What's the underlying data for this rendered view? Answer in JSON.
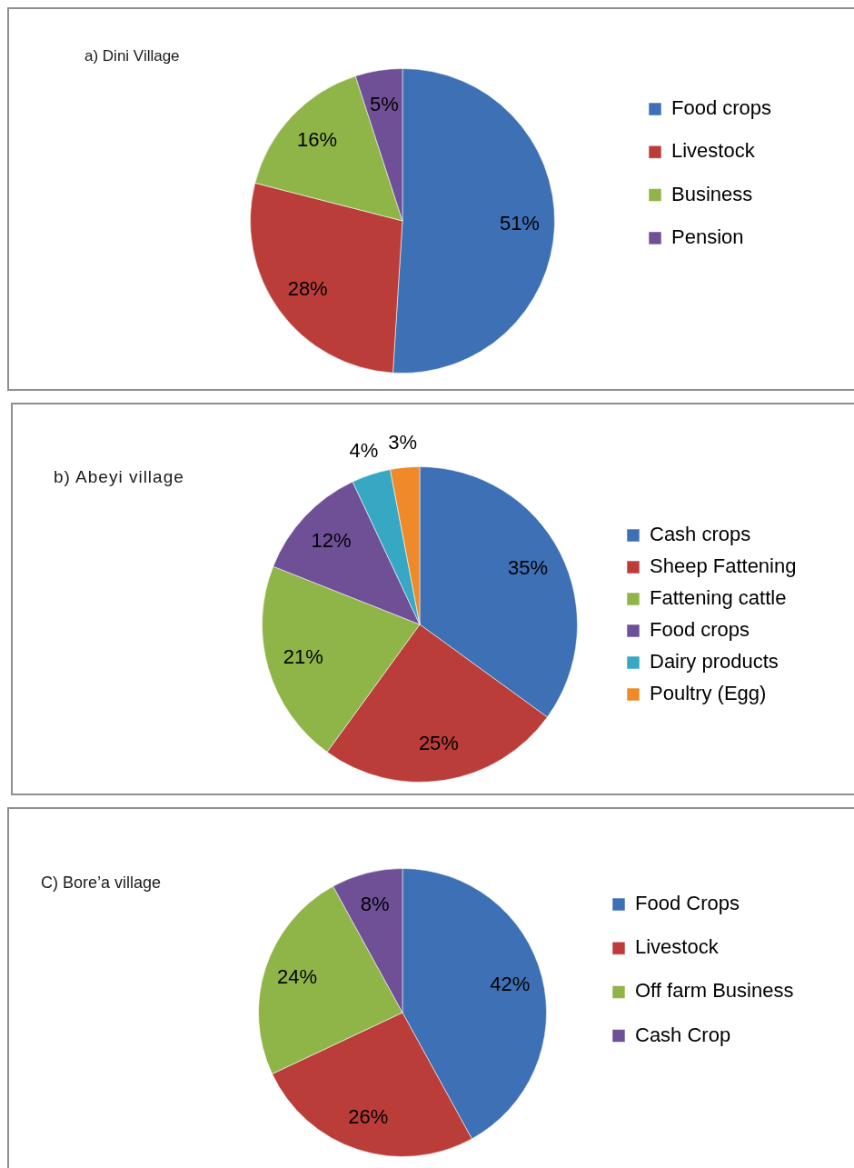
{
  "chart_data": [
    {
      "type": "pie",
      "title": "a) Dini Village",
      "categories": [
        "Food crops",
        "Livestock",
        "Business",
        "Pension"
      ],
      "values": [
        51,
        28,
        16,
        5
      ],
      "colors": [
        "#3d70b5",
        "#bb3d3a",
        "#8fb548",
        "#6f5097"
      ],
      "value_labels": [
        "51%",
        "28%",
        "16%",
        "5%"
      ],
      "legend": "right"
    },
    {
      "type": "pie",
      "title": "b) Abeyi village",
      "categories": [
        "Cash crops",
        "Sheep Fattening",
        "Fattening cattle",
        "Food crops",
        "Dairy products",
        "Poultry (Egg)"
      ],
      "values": [
        35,
        25,
        21,
        12,
        4,
        3
      ],
      "colors": [
        "#3d70b5",
        "#bb3d3a",
        "#8fb548",
        "#6f5097",
        "#37a8c4",
        "#ee8a2a"
      ],
      "value_labels": [
        "35%",
        "25%",
        "21%",
        "12%",
        "4%",
        "3%"
      ],
      "legend": "right"
    },
    {
      "type": "pie",
      "title": "C) Bore’a village",
      "categories": [
        "Food Crops",
        "Livestock",
        "Off farm Business",
        "Cash Crop"
      ],
      "values": [
        42,
        26,
        24,
        8
      ],
      "colors": [
        "#3d70b5",
        "#bb3d3a",
        "#8fb548",
        "#6f5097"
      ],
      "value_labels": [
        "42%",
        "26%",
        "24%",
        "8%"
      ],
      "legend": "right"
    }
  ]
}
